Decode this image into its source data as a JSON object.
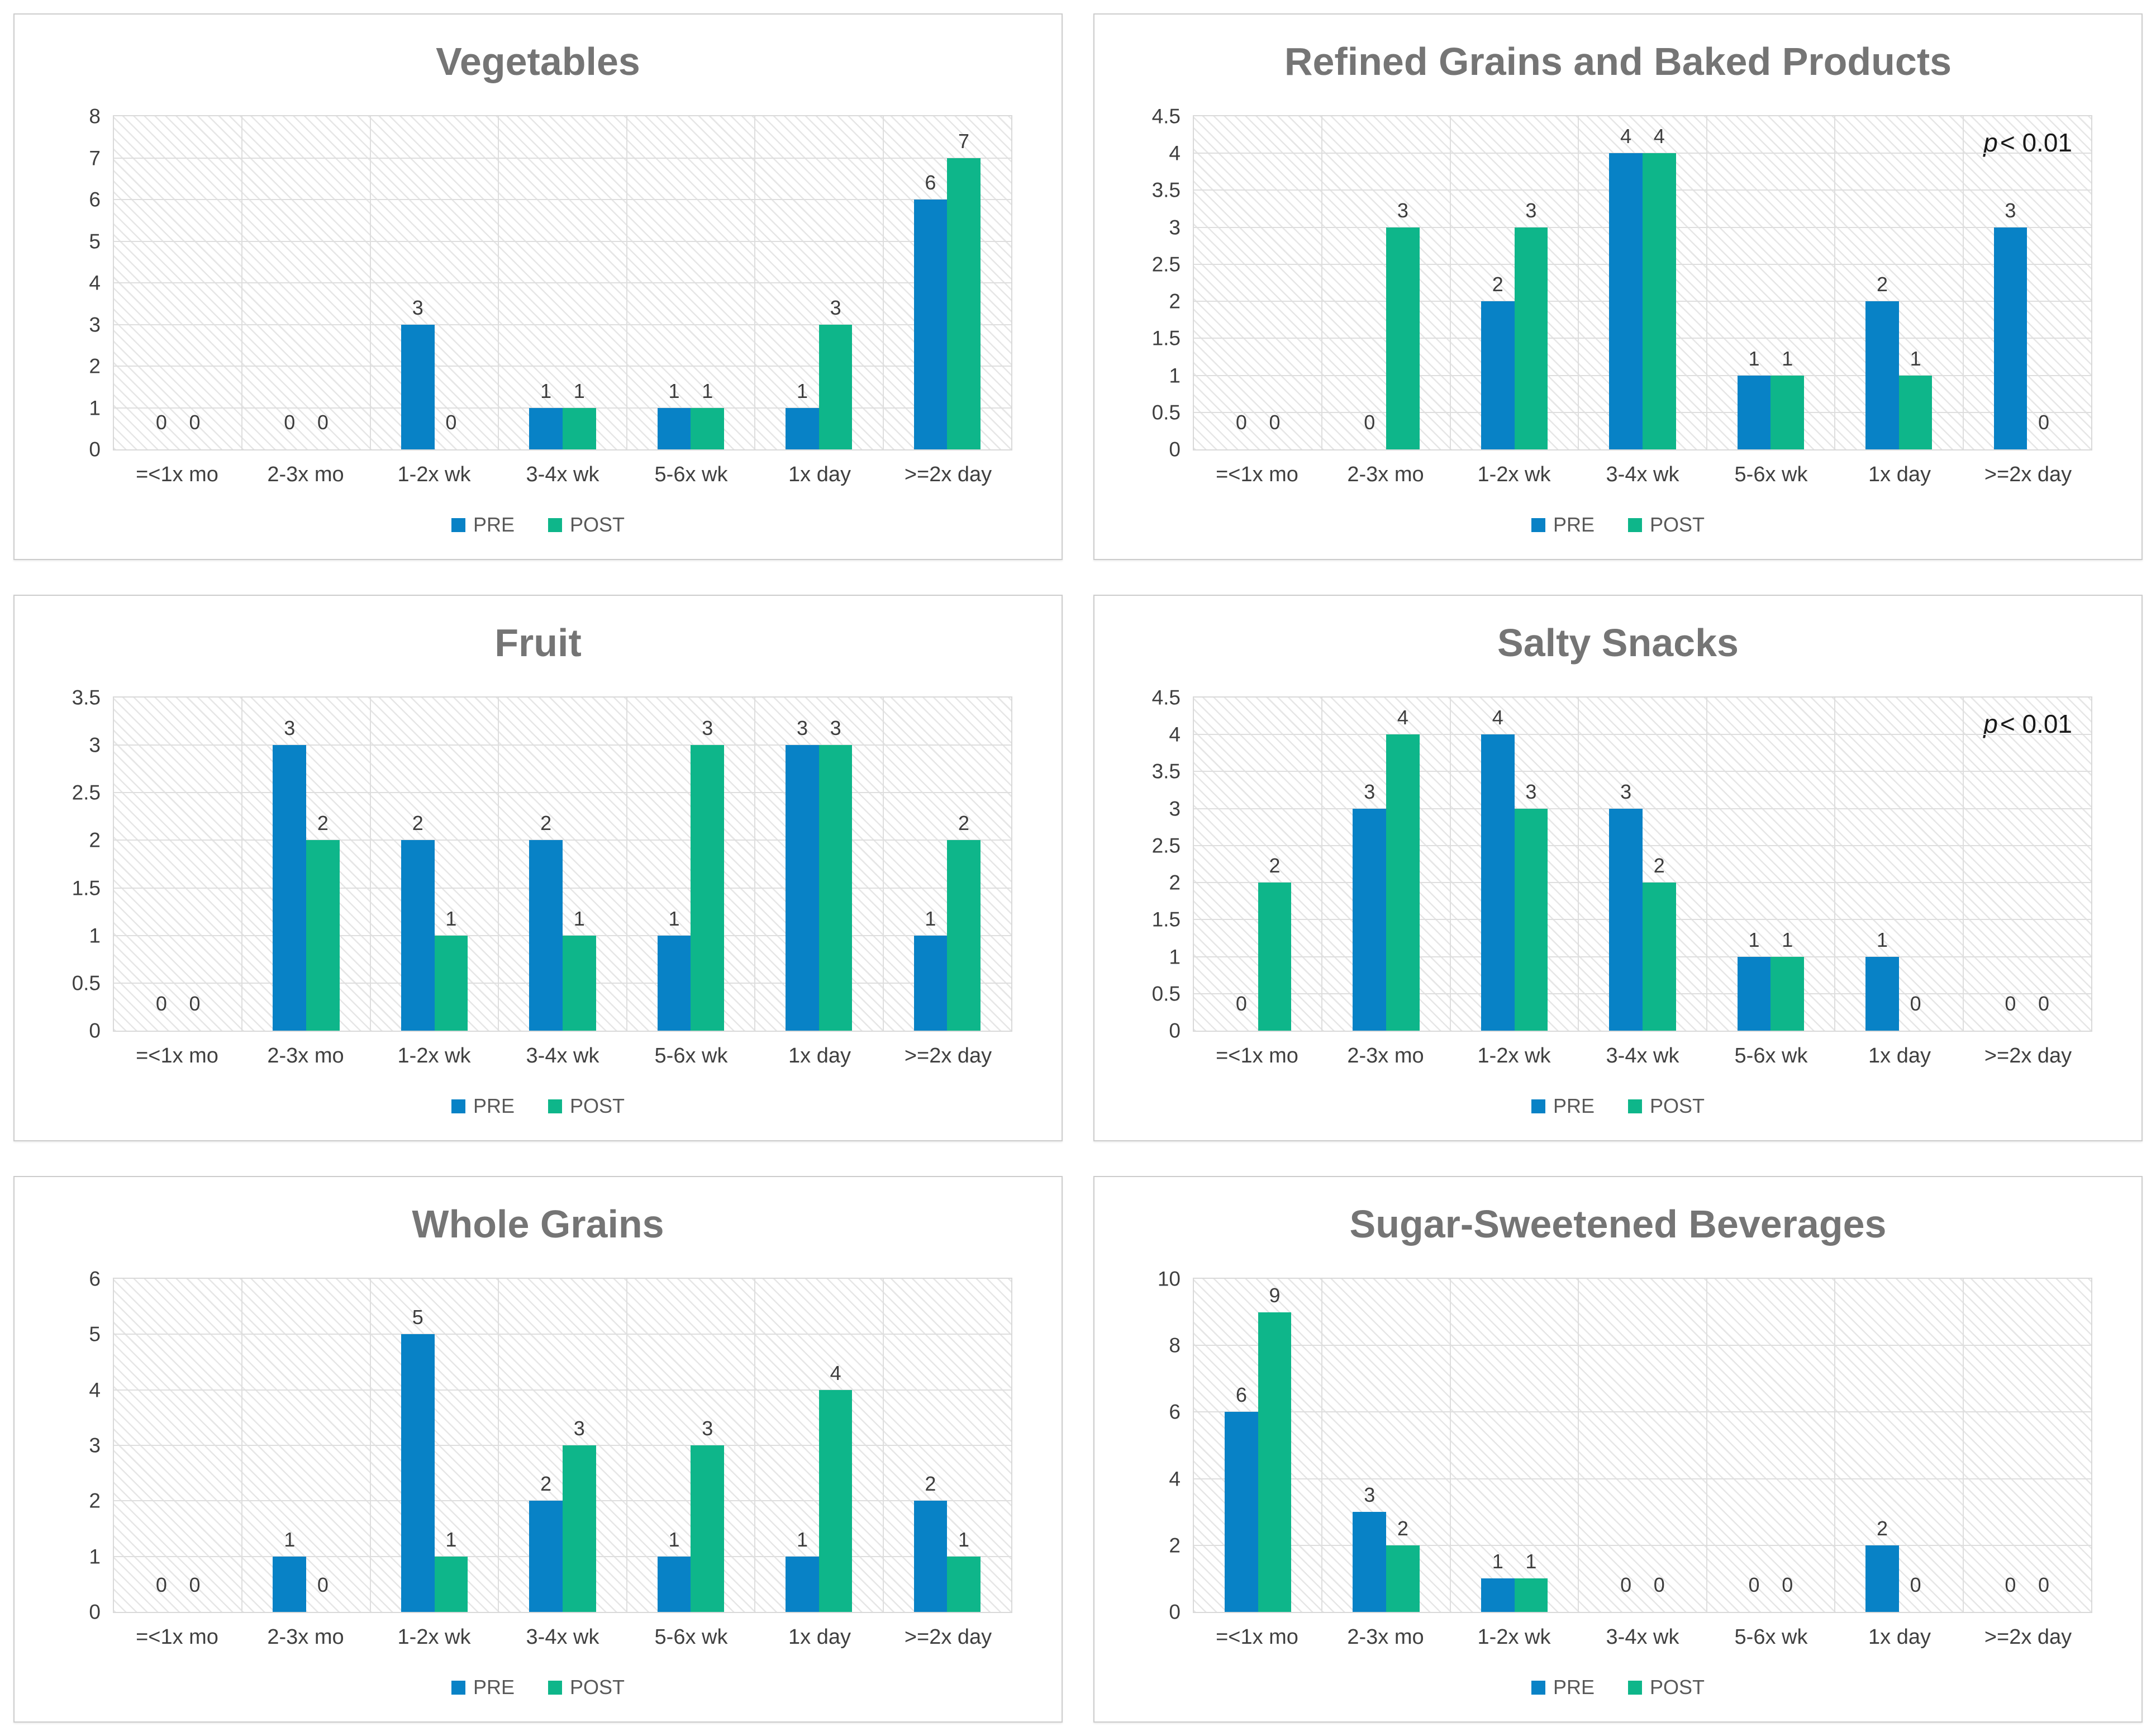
{
  "colors": {
    "pre": "#0882C6",
    "post": "#0EB68A",
    "title": "#757575",
    "axis_label": "#404040",
    "data_label": "#3D3D3D",
    "gridline": "#DEDEDE",
    "panel_border": "#CCCCCC",
    "legend_text": "#595959",
    "annotation": "#1A1A1A"
  },
  "legend": {
    "pre_label": "PRE",
    "post_label": "POST"
  },
  "categories": [
    "=<1x mo",
    "2-3x mo",
    "1-2x wk",
    "3-4x wk",
    "5-6x wk",
    "1x day",
    ">=2x day"
  ],
  "chart_data": [
    {
      "type": "bar",
      "title": "Vegetables",
      "categories": [
        "=<1x mo",
        "2-3x mo",
        "1-2x wk",
        "3-4x wk",
        "5-6x wk",
        "1x day",
        ">=2x day"
      ],
      "series": [
        {
          "name": "PRE",
          "values": [
            0,
            0,
            3,
            1,
            1,
            1,
            6
          ]
        },
        {
          "name": "POST",
          "values": [
            0,
            0,
            0,
            1,
            1,
            3,
            7
          ]
        }
      ],
      "ylim": [
        0,
        8
      ],
      "ytick_step": 1,
      "grid": true,
      "legend_position": "bottom",
      "annotation": null
    },
    {
      "type": "bar",
      "title": "Refined Grains and Baked Products",
      "categories": [
        "=<1x mo",
        "2-3x mo",
        "1-2x wk",
        "3-4x wk",
        "5-6x wk",
        "1x day",
        ">=2x day"
      ],
      "series": [
        {
          "name": "PRE",
          "values": [
            0,
            0,
            2,
            4,
            1,
            2,
            3
          ]
        },
        {
          "name": "POST",
          "values": [
            0,
            3,
            3,
            4,
            1,
            1,
            0
          ]
        }
      ],
      "ylim": [
        0,
        4.5
      ],
      "ytick_step": 0.5,
      "grid": true,
      "legend_position": "bottom",
      "annotation": {
        "italic": "p",
        "text": "< 0.01"
      }
    },
    {
      "type": "bar",
      "title": "Fruit",
      "categories": [
        "=<1x mo",
        "2-3x mo",
        "1-2x wk",
        "3-4x wk",
        "5-6x wk",
        "1x day",
        ">=2x day"
      ],
      "series": [
        {
          "name": "PRE",
          "values": [
            0,
            3,
            2,
            2,
            1,
            3,
            1
          ]
        },
        {
          "name": "POST",
          "values": [
            0,
            2,
            1,
            1,
            3,
            3,
            2
          ]
        }
      ],
      "ylim": [
        0,
        3.5
      ],
      "ytick_step": 0.5,
      "grid": true,
      "legend_position": "bottom",
      "annotation": null
    },
    {
      "type": "bar",
      "title": "Salty Snacks",
      "categories": [
        "=<1x mo",
        "2-3x mo",
        "1-2x wk",
        "3-4x wk",
        "5-6x wk",
        "1x day",
        ">=2x day"
      ],
      "series": [
        {
          "name": "PRE",
          "values": [
            0,
            3,
            4,
            3,
            1,
            1,
            0
          ]
        },
        {
          "name": "POST",
          "values": [
            2,
            4,
            3,
            2,
            1,
            0,
            0
          ]
        }
      ],
      "ylim": [
        0,
        4.5
      ],
      "ytick_step": 0.5,
      "grid": true,
      "legend_position": "bottom",
      "annotation": {
        "italic": "p",
        "text": "< 0.01"
      }
    },
    {
      "type": "bar",
      "title": "Whole Grains",
      "categories": [
        "=<1x mo",
        "2-3x mo",
        "1-2x wk",
        "3-4x wk",
        "5-6x wk",
        "1x day",
        ">=2x day"
      ],
      "series": [
        {
          "name": "PRE",
          "values": [
            0,
            1,
            5,
            2,
            1,
            1,
            2
          ]
        },
        {
          "name": "POST",
          "values": [
            0,
            0,
            1,
            3,
            3,
            4,
            1
          ]
        }
      ],
      "ylim": [
        0,
        6
      ],
      "ytick_step": 1,
      "grid": true,
      "legend_position": "bottom",
      "annotation": null
    },
    {
      "type": "bar",
      "title": "Sugar-Sweetened Beverages",
      "categories": [
        "=<1x mo",
        "2-3x mo",
        "1-2x wk",
        "3-4x wk",
        "5-6x wk",
        "1x day",
        ">=2x day"
      ],
      "series": [
        {
          "name": "PRE",
          "values": [
            6,
            3,
            1,
            0,
            0,
            2,
            0
          ]
        },
        {
          "name": "POST",
          "values": [
            9,
            2,
            1,
            0,
            0,
            0,
            0
          ]
        }
      ],
      "ylim": [
        0,
        10
      ],
      "ytick_step": 2,
      "grid": true,
      "legend_position": "bottom",
      "annotation": null
    }
  ]
}
